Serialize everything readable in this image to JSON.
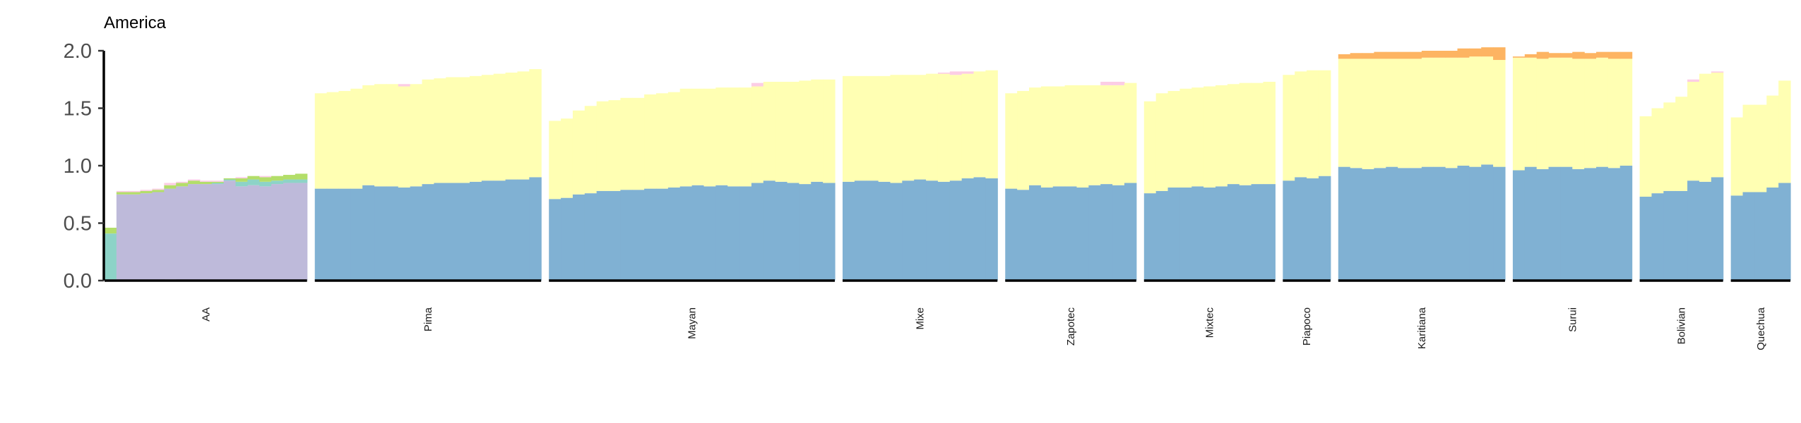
{
  "chart_data": {
    "type": "bar",
    "title": "America",
    "xlabel": "",
    "ylabel": "",
    "ylim": [
      0,
      2.0
    ],
    "y_ticks": [
      "0.0",
      "0.5",
      "1.0",
      "1.5",
      "2.0"
    ],
    "stacked": true,
    "grid": false,
    "legend": "none",
    "components": [
      {
        "name": "",
        "color": "#80B1D3"
      },
      {
        "name": "",
        "color": "#FFFFB3"
      },
      {
        "name": "",
        "color": "#BEBADA"
      },
      {
        "name": "",
        "color": "#8DD3C7"
      },
      {
        "name": "",
        "color": "#B3DE69"
      },
      {
        "name": "",
        "color": "#FDB462"
      },
      {
        "name": "",
        "color": "#FCCDE5"
      }
    ],
    "groups": [
      {
        "label": "AA",
        "bars": [
          [
            0.01,
            0,
            0,
            0.4,
            0.05,
            0,
            0
          ],
          [
            0,
            0,
            0.75,
            0,
            0.02,
            0,
            0.01
          ],
          [
            0,
            0,
            0.75,
            0,
            0.02,
            0,
            0.01
          ],
          [
            0,
            0,
            0.76,
            0,
            0.02,
            0,
            0.01
          ],
          [
            0,
            0,
            0.77,
            0,
            0.02,
            0,
            0.01
          ],
          [
            0.01,
            0,
            0.79,
            0,
            0.03,
            0,
            0.02
          ],
          [
            0,
            0,
            0.82,
            0,
            0.03,
            0,
            0.01
          ],
          [
            0,
            0,
            0.84,
            0,
            0.03,
            0,
            0.01
          ],
          [
            0,
            0,
            0.84,
            0,
            0.02,
            0,
            0.01
          ],
          [
            0,
            0,
            0.84,
            0.01,
            0.01,
            0,
            0.01
          ],
          [
            0,
            0,
            0.87,
            0.01,
            0.01,
            0,
            0
          ],
          [
            0,
            0,
            0.82,
            0.04,
            0.03,
            0,
            0.01
          ],
          [
            0,
            0,
            0.83,
            0.05,
            0.03,
            0,
            0
          ],
          [
            0,
            0,
            0.82,
            0.04,
            0.04,
            0,
            0.01
          ],
          [
            0,
            0,
            0.84,
            0.03,
            0.04,
            0,
            0
          ],
          [
            0,
            0,
            0.85,
            0.03,
            0.04,
            0,
            0
          ],
          [
            0,
            0,
            0.85,
            0.03,
            0.05,
            0,
            0
          ]
        ]
      },
      {
        "label": "Pima",
        "bars": [
          [
            0.8,
            0.83,
            0,
            0,
            0,
            0,
            0
          ],
          [
            0.8,
            0.84,
            0,
            0,
            0,
            0,
            0
          ],
          [
            0.8,
            0.85,
            0,
            0,
            0,
            0,
            0
          ],
          [
            0.8,
            0.87,
            0,
            0,
            0,
            0,
            0
          ],
          [
            0.83,
            0.87,
            0,
            0,
            0,
            0,
            0
          ],
          [
            0.82,
            0.89,
            0,
            0,
            0,
            0,
            0
          ],
          [
            0.82,
            0.89,
            0,
            0,
            0,
            0,
            0
          ],
          [
            0.81,
            0.88,
            0,
            0,
            0,
            0,
            0.02
          ],
          [
            0.82,
            0.89,
            0,
            0,
            0,
            0,
            0
          ],
          [
            0.84,
            0.91,
            0,
            0,
            0,
            0,
            0
          ],
          [
            0.85,
            0.91,
            0,
            0,
            0,
            0,
            0
          ],
          [
            0.85,
            0.92,
            0,
            0,
            0,
            0,
            0
          ],
          [
            0.85,
            0.92,
            0,
            0,
            0,
            0,
            0
          ],
          [
            0.86,
            0.92,
            0,
            0,
            0,
            0,
            0
          ],
          [
            0.87,
            0.92,
            0,
            0,
            0,
            0,
            0
          ],
          [
            0.87,
            0.93,
            0,
            0,
            0,
            0,
            0
          ],
          [
            0.88,
            0.93,
            0,
            0,
            0,
            0,
            0
          ],
          [
            0.88,
            0.94,
            0,
            0,
            0,
            0,
            0
          ],
          [
            0.9,
            0.94,
            0,
            0,
            0,
            0,
            0
          ]
        ]
      },
      {
        "label": "Mayan",
        "bars": [
          [
            0.71,
            0.68,
            0,
            0,
            0,
            0,
            0
          ],
          [
            0.72,
            0.69,
            0,
            0,
            0,
            0,
            0
          ],
          [
            0.75,
            0.73,
            0,
            0,
            0,
            0,
            0
          ],
          [
            0.76,
            0.76,
            0,
            0,
            0,
            0,
            0
          ],
          [
            0.78,
            0.78,
            0,
            0,
            0,
            0,
            0
          ],
          [
            0.78,
            0.79,
            0,
            0,
            0,
            0,
            0
          ],
          [
            0.79,
            0.8,
            0,
            0,
            0,
            0,
            0
          ],
          [
            0.79,
            0.8,
            0,
            0,
            0,
            0,
            0
          ],
          [
            0.8,
            0.82,
            0,
            0,
            0,
            0,
            0
          ],
          [
            0.8,
            0.83,
            0,
            0,
            0,
            0,
            0
          ],
          [
            0.81,
            0.83,
            0,
            0,
            0,
            0,
            0
          ],
          [
            0.82,
            0.85,
            0,
            0,
            0,
            0,
            0
          ],
          [
            0.83,
            0.84,
            0,
            0,
            0,
            0,
            0
          ],
          [
            0.82,
            0.85,
            0,
            0,
            0,
            0,
            0
          ],
          [
            0.83,
            0.85,
            0,
            0,
            0,
            0,
            0
          ],
          [
            0.82,
            0.86,
            0,
            0,
            0,
            0,
            0
          ],
          [
            0.82,
            0.86,
            0,
            0,
            0,
            0,
            0
          ],
          [
            0.85,
            0.84,
            0,
            0,
            0,
            0,
            0.03
          ],
          [
            0.87,
            0.86,
            0,
            0,
            0,
            0,
            0
          ],
          [
            0.86,
            0.87,
            0,
            0,
            0,
            0,
            0
          ],
          [
            0.85,
            0.88,
            0,
            0,
            0,
            0,
            0
          ],
          [
            0.84,
            0.9,
            0,
            0,
            0,
            0,
            0
          ],
          [
            0.86,
            0.89,
            0,
            0,
            0,
            0,
            0
          ],
          [
            0.85,
            0.9,
            0,
            0,
            0,
            0,
            0
          ]
        ]
      },
      {
        "label": "Mixe",
        "bars": [
          [
            0.86,
            0.92,
            0,
            0,
            0,
            0,
            0
          ],
          [
            0.87,
            0.91,
            0,
            0,
            0,
            0,
            0
          ],
          [
            0.87,
            0.91,
            0,
            0,
            0,
            0,
            0
          ],
          [
            0.86,
            0.92,
            0,
            0,
            0,
            0,
            0
          ],
          [
            0.85,
            0.94,
            0,
            0,
            0,
            0,
            0
          ],
          [
            0.87,
            0.92,
            0,
            0,
            0,
            0,
            0
          ],
          [
            0.88,
            0.91,
            0,
            0,
            0,
            0,
            0
          ],
          [
            0.87,
            0.93,
            0,
            0,
            0,
            0,
            0
          ],
          [
            0.86,
            0.94,
            0,
            0,
            0,
            0,
            0.01
          ],
          [
            0.87,
            0.92,
            0,
            0,
            0,
            0,
            0.03
          ],
          [
            0.89,
            0.91,
            0,
            0,
            0,
            0,
            0.02
          ],
          [
            0.9,
            0.92,
            0,
            0,
            0,
            0,
            0
          ],
          [
            0.89,
            0.94,
            0,
            0,
            0,
            0,
            0
          ]
        ]
      },
      {
        "label": "Zapotec",
        "bars": [
          [
            0.8,
            0.83,
            0,
            0,
            0,
            0,
            0
          ],
          [
            0.79,
            0.86,
            0,
            0,
            0,
            0,
            0
          ],
          [
            0.83,
            0.85,
            0,
            0,
            0,
            0,
            0
          ],
          [
            0.81,
            0.88,
            0,
            0,
            0,
            0,
            0
          ],
          [
            0.82,
            0.87,
            0,
            0,
            0,
            0,
            0
          ],
          [
            0.82,
            0.88,
            0,
            0,
            0,
            0,
            0
          ],
          [
            0.81,
            0.89,
            0,
            0,
            0,
            0,
            0
          ],
          [
            0.83,
            0.87,
            0,
            0,
            0,
            0,
            0
          ],
          [
            0.84,
            0.86,
            0,
            0,
            0,
            0,
            0.03
          ],
          [
            0.83,
            0.87,
            0,
            0,
            0,
            0,
            0.03
          ],
          [
            0.85,
            0.87,
            0,
            0,
            0,
            0,
            0
          ]
        ]
      },
      {
        "label": "Mixtec",
        "bars": [
          [
            0.76,
            0.8,
            0,
            0,
            0,
            0,
            0
          ],
          [
            0.78,
            0.85,
            0,
            0,
            0,
            0,
            0
          ],
          [
            0.81,
            0.84,
            0,
            0,
            0,
            0,
            0
          ],
          [
            0.81,
            0.86,
            0,
            0,
            0,
            0,
            0
          ],
          [
            0.82,
            0.86,
            0,
            0,
            0,
            0,
            0
          ],
          [
            0.81,
            0.88,
            0,
            0,
            0,
            0,
            0
          ],
          [
            0.82,
            0.88,
            0,
            0,
            0,
            0,
            0
          ],
          [
            0.84,
            0.87,
            0,
            0,
            0,
            0,
            0
          ],
          [
            0.83,
            0.89,
            0,
            0,
            0,
            0,
            0
          ],
          [
            0.84,
            0.88,
            0,
            0,
            0,
            0,
            0
          ],
          [
            0.84,
            0.89,
            0,
            0,
            0,
            0,
            0
          ]
        ]
      },
      {
        "label": "Piapoco",
        "bars": [
          [
            0.87,
            0.92,
            0,
            0,
            0,
            0,
            0
          ],
          [
            0.9,
            0.92,
            0,
            0,
            0,
            0,
            0
          ],
          [
            0.89,
            0.94,
            0,
            0,
            0,
            0,
            0
          ],
          [
            0.91,
            0.92,
            0,
            0,
            0,
            0,
            0
          ]
        ]
      },
      {
        "label": "Karitiana",
        "bars": [
          [
            0.99,
            0.94,
            0,
            0,
            0,
            0.04,
            0
          ],
          [
            0.98,
            0.95,
            0,
            0,
            0,
            0.05,
            0
          ],
          [
            0.97,
            0.96,
            0,
            0,
            0,
            0.05,
            0
          ],
          [
            0.98,
            0.95,
            0,
            0,
            0,
            0.06,
            0
          ],
          [
            0.99,
            0.94,
            0,
            0,
            0,
            0.06,
            0
          ],
          [
            0.98,
            0.95,
            0,
            0,
            0,
            0.06,
            0
          ],
          [
            0.98,
            0.95,
            0,
            0,
            0,
            0.06,
            0
          ],
          [
            0.99,
            0.95,
            0,
            0,
            0,
            0.06,
            0
          ],
          [
            0.99,
            0.95,
            0,
            0,
            0,
            0.06,
            0
          ],
          [
            0.98,
            0.96,
            0,
            0,
            0,
            0.06,
            0
          ],
          [
            1.0,
            0.94,
            0,
            0,
            0,
            0.08,
            0
          ],
          [
            0.99,
            0.96,
            0,
            0,
            0,
            0.07,
            0
          ],
          [
            1.01,
            0.94,
            0,
            0,
            0,
            0.08,
            0
          ],
          [
            0.99,
            0.93,
            0,
            0,
            0,
            0.11,
            0
          ]
        ]
      },
      {
        "label": "Surui",
        "bars": [
          [
            0.96,
            0.98,
            0,
            0,
            0,
            0.01,
            0
          ],
          [
            0.99,
            0.95,
            0,
            0,
            0,
            0.03,
            0
          ],
          [
            0.97,
            0.96,
            0,
            0,
            0,
            0.06,
            0
          ],
          [
            0.99,
            0.95,
            0,
            0,
            0,
            0.04,
            0
          ],
          [
            0.99,
            0.95,
            0,
            0,
            0,
            0.04,
            0
          ],
          [
            0.97,
            0.96,
            0,
            0,
            0,
            0.06,
            0
          ],
          [
            0.98,
            0.95,
            0,
            0,
            0,
            0.05,
            0
          ],
          [
            0.99,
            0.95,
            0,
            0,
            0,
            0.05,
            0
          ],
          [
            0.98,
            0.95,
            0,
            0,
            0,
            0.06,
            0
          ],
          [
            1.0,
            0.93,
            0,
            0,
            0,
            0.06,
            0
          ]
        ]
      },
      {
        "label": "Bolivian",
        "bars": [
          [
            0.73,
            0.7,
            0,
            0,
            0,
            0,
            0
          ],
          [
            0.76,
            0.74,
            0,
            0,
            0,
            0,
            0
          ],
          [
            0.78,
            0.77,
            0,
            0,
            0,
            0,
            0
          ],
          [
            0.78,
            0.82,
            0,
            0,
            0,
            0,
            0
          ],
          [
            0.87,
            0.86,
            0,
            0,
            0,
            0,
            0.02
          ],
          [
            0.86,
            0.94,
            0,
            0,
            0,
            0,
            0
          ],
          [
            0.9,
            0.91,
            0,
            0,
            0,
            0,
            0.01
          ]
        ]
      },
      {
        "label": "Quechua",
        "bars": [
          [
            0.74,
            0.68,
            0,
            0,
            0,
            0,
            0
          ],
          [
            0.77,
            0.76,
            0,
            0,
            0,
            0,
            0
          ],
          [
            0.77,
            0.76,
            0,
            0,
            0,
            0,
            0
          ],
          [
            0.81,
            0.8,
            0,
            0,
            0,
            0,
            0
          ],
          [
            0.85,
            0.89,
            0,
            0,
            0,
            0,
            0
          ]
        ]
      }
    ]
  }
}
